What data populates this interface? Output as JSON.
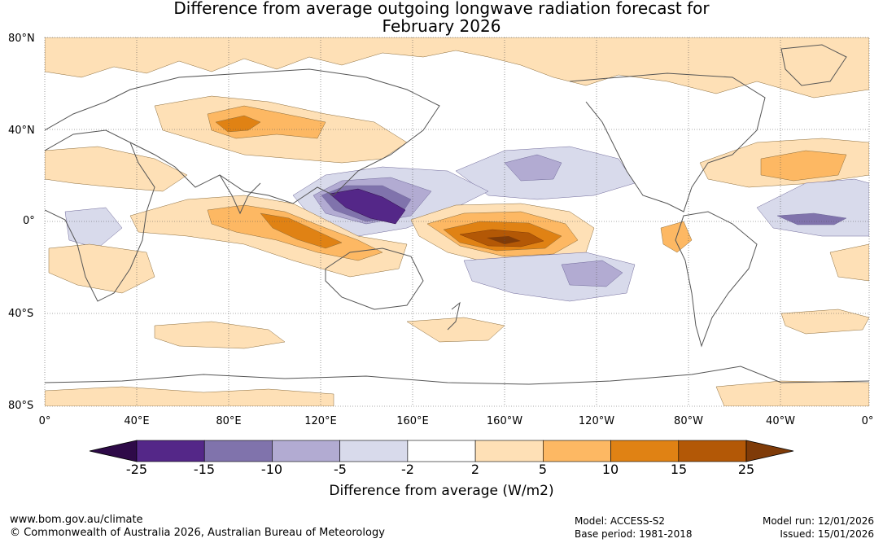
{
  "title": {
    "line1": "Difference from average outgoing longwave radiation forecast for",
    "line2": "February 2026"
  },
  "map": {
    "lat_labels": [
      "80°N",
      "40°N",
      "0°",
      "40°S",
      "80°S"
    ],
    "lon_labels": [
      "0°",
      "40°E",
      "80°E",
      "120°E",
      "160°E",
      "160°W",
      "120°W",
      "80°W",
      "40°W",
      "0°"
    ]
  },
  "colorbar": {
    "ticks": [
      "-25",
      "-15",
      "-10",
      "-5",
      "-2",
      "2",
      "5",
      "10",
      "15",
      "25"
    ],
    "colors": [
      "#2e0a48",
      "#542788",
      "#8073ac",
      "#b2abd2",
      "#d8daeb",
      "#ffffff",
      "#fee0b6",
      "#fdb863",
      "#e08214",
      "#b35806",
      "#7f3b08"
    ],
    "label": "Difference from average (W/m2)"
  },
  "footer": {
    "url": "www.bom.gov.au/climate",
    "copyright": "© Commonwealth of Australia 2026, Australian Bureau of Meteorology",
    "model": "Model: ACCESS-S2",
    "base_period": "Base period: 1981-2018",
    "model_run": "Model run: 12/01/2026",
    "issued": "Issued: 15/01/2026"
  }
}
